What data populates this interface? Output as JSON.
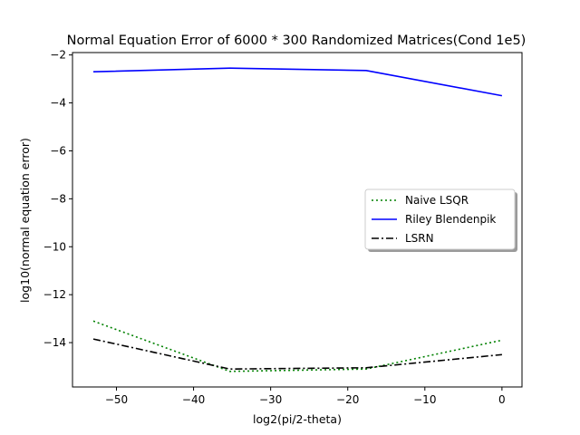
{
  "chart_data": {
    "type": "line",
    "title": "Normal Equation Error of 6000 * 300 Randomized Matrices(Cond 1e5)",
    "xlabel": "log2(pi/2-theta)",
    "ylabel": "log10(normal equation error)",
    "xlim": [
      -55.7,
      2.6
    ],
    "ylim": [
      -15.85,
      -1.9
    ],
    "xticks": [
      -50,
      -40,
      -30,
      -20,
      -10,
      0
    ],
    "yticks": [
      -14,
      -12,
      -10,
      -8,
      -6,
      -4,
      -2
    ],
    "legend_position": "center-right",
    "grid": false,
    "series": [
      {
        "name": "Naive LSQR",
        "color": "#008000",
        "style": "dotted",
        "x": [
          -53,
          -35.3,
          -17.6,
          0
        ],
        "y": [
          -13.1,
          -15.2,
          -15.1,
          -13.9
        ]
      },
      {
        "name": "Riley Blendenpik",
        "color": "#0000ff",
        "style": "solid",
        "x": [
          -53,
          -35.3,
          -17.6,
          0
        ],
        "y": [
          -2.7,
          -2.55,
          -2.65,
          -3.7
        ]
      },
      {
        "name": "LSRN",
        "color": "#000000",
        "style": "dashdot",
        "x": [
          -53,
          -35.3,
          -17.6,
          0
        ],
        "y": [
          -13.85,
          -15.1,
          -15.05,
          -14.5
        ]
      }
    ]
  }
}
